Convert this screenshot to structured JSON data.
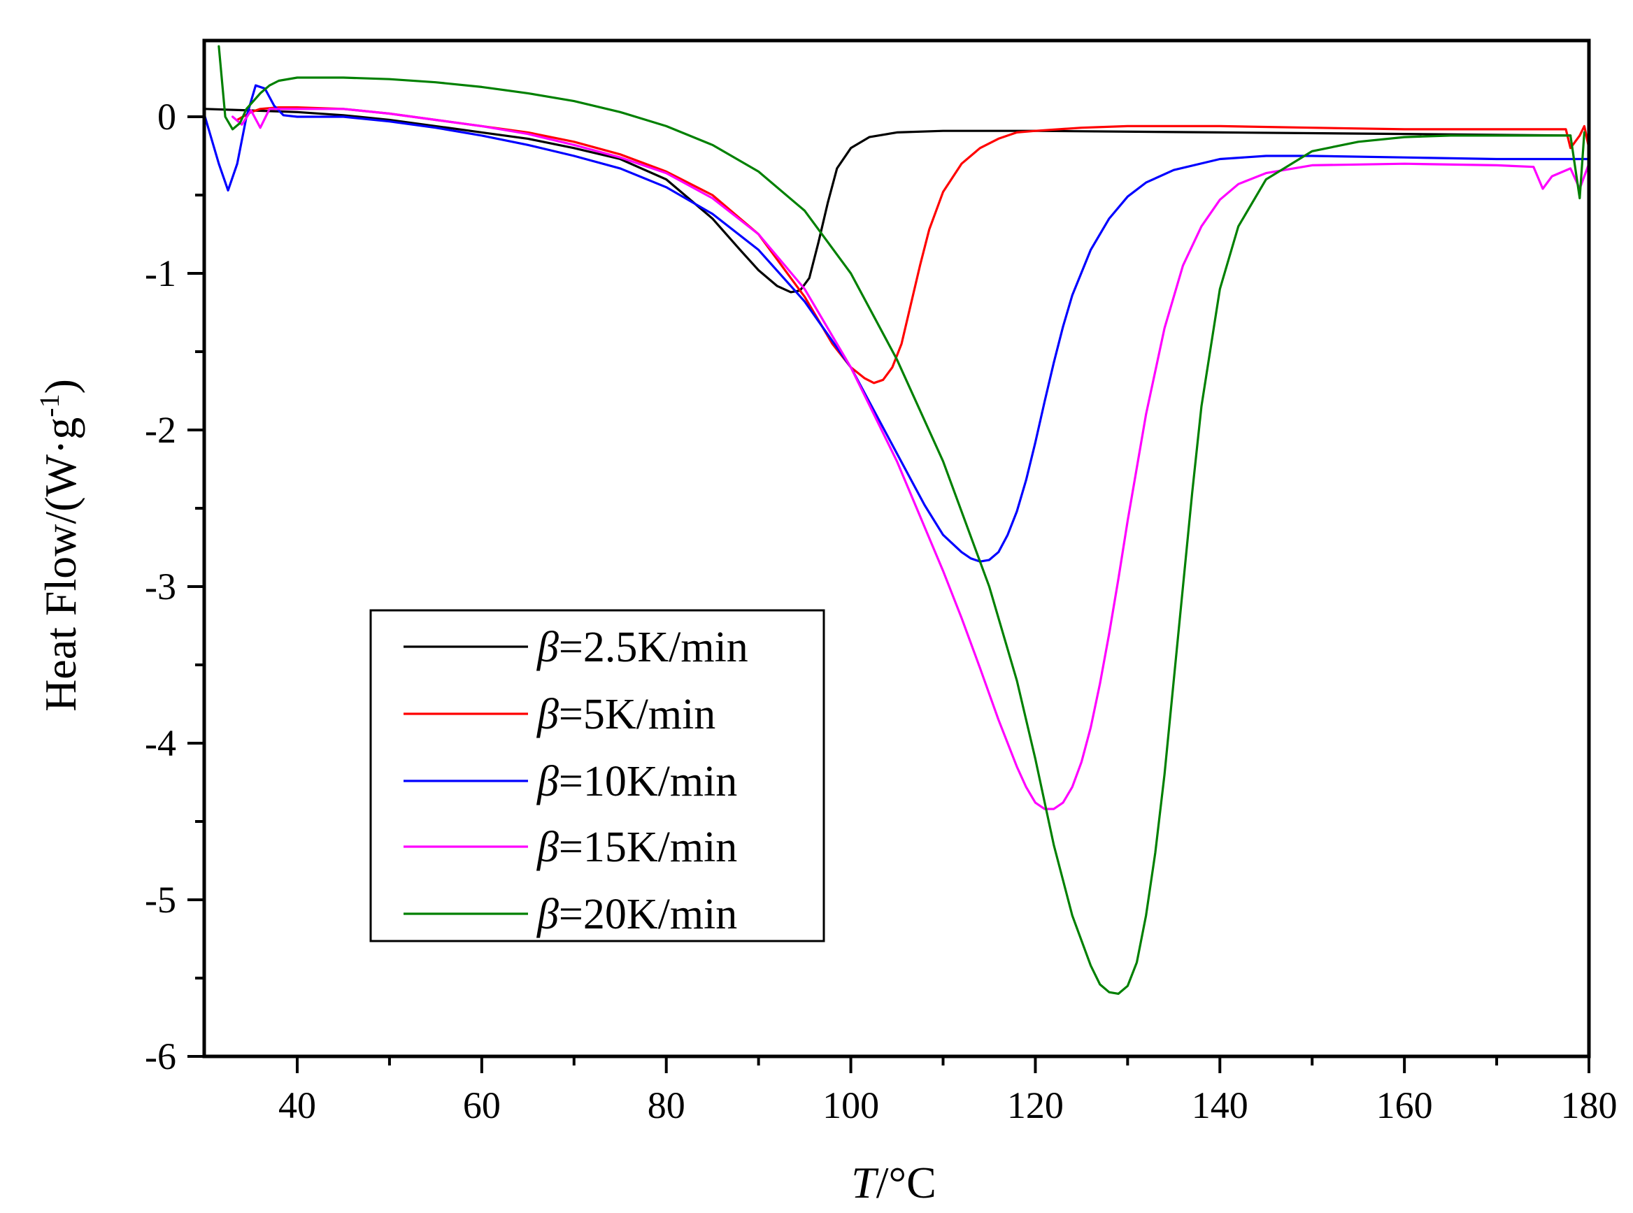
{
  "chart_data": {
    "type": "line",
    "title": "",
    "xlabel": {
      "italic": "T",
      "rest": "/°C"
    },
    "ylabel": {
      "main": "Heat Flow/(W·g",
      "sup": "-1",
      "close": ")"
    },
    "xlim": [
      30,
      180
    ],
    "ylim": [
      -6,
      0.5
    ],
    "xticks": [
      40,
      60,
      80,
      100,
      120,
      140,
      160,
      180
    ],
    "yticks": [
      0,
      -1,
      -2,
      -3,
      -4,
      -5,
      -6
    ],
    "xtick_labels": [
      "40",
      "60",
      "80",
      "100",
      "120",
      "140",
      "160",
      "180"
    ],
    "ytick_labels": [
      "0",
      "-1",
      "-2",
      "-3",
      "-4",
      "-5",
      "-6"
    ],
    "grid": false,
    "legend_position": "lower-left",
    "series": [
      {
        "name": "β=2.5K/min",
        "symbol": "β",
        "label": "=2.5K/min",
        "color": "#000000",
        "x": [
          30,
          35,
          40,
          45,
          50,
          55,
          60,
          65,
          70,
          75,
          80,
          85,
          88,
          90,
          92,
          93.5,
          94.5,
          95.5,
          96.5,
          97.5,
          98.5,
          100,
          102,
          105,
          110,
          115,
          120,
          140,
          160,
          178
        ],
        "y": [
          0.05,
          0.04,
          0.03,
          0.01,
          -0.02,
          -0.06,
          -0.1,
          -0.14,
          -0.2,
          -0.27,
          -0.4,
          -0.65,
          -0.85,
          -0.98,
          -1.08,
          -1.12,
          -1.11,
          -1.03,
          -0.8,
          -0.55,
          -0.33,
          -0.2,
          -0.13,
          -0.1,
          -0.09,
          -0.09,
          -0.09,
          -0.1,
          -0.11,
          -0.12
        ]
      },
      {
        "name": "β=5K/min",
        "symbol": "β",
        "label": "=5K/min",
        "color": "#ff0000",
        "x": [
          33.5,
          35,
          36,
          38,
          40,
          45,
          50,
          55,
          60,
          65,
          70,
          75,
          80,
          85,
          90,
          95,
          98,
          100,
          101.5,
          102.5,
          103.5,
          104.5,
          105.5,
          106.5,
          107.5,
          108.5,
          110,
          112,
          114,
          116,
          118,
          120,
          125,
          130,
          140,
          150,
          160,
          170,
          177.5,
          178,
          179,
          179.5,
          180
        ],
        "y": [
          -0.02,
          0.03,
          0.05,
          0.06,
          0.06,
          0.05,
          0.02,
          -0.02,
          -0.06,
          -0.1,
          -0.16,
          -0.24,
          -0.35,
          -0.5,
          -0.75,
          -1.15,
          -1.45,
          -1.6,
          -1.67,
          -1.7,
          -1.68,
          -1.6,
          -1.45,
          -1.2,
          -0.95,
          -0.72,
          -0.48,
          -0.3,
          -0.2,
          -0.14,
          -0.1,
          -0.09,
          -0.07,
          -0.06,
          -0.06,
          -0.07,
          -0.08,
          -0.08,
          -0.08,
          -0.2,
          -0.12,
          -0.06,
          -0.2
        ]
      },
      {
        "name": "β=10K/min",
        "symbol": "β",
        "label": "=10K/min",
        "color": "#0000ff",
        "x": [
          30,
          31.5,
          32.5,
          33.5,
          34.5,
          35.5,
          36.5,
          37.5,
          38.5,
          40,
          45,
          50,
          55,
          60,
          65,
          70,
          75,
          80,
          85,
          90,
          95,
          100,
          105,
          108,
          110,
          112,
          113,
          114,
          115,
          116,
          117,
          118,
          119,
          120,
          121,
          122,
          123,
          124,
          126,
          128,
          130,
          132,
          135,
          140,
          145,
          150,
          160,
          170,
          180
        ],
        "y": [
          0.0,
          -0.3,
          -0.47,
          -0.3,
          0.0,
          0.2,
          0.18,
          0.07,
          0.01,
          0.0,
          0.0,
          -0.03,
          -0.07,
          -0.12,
          -0.18,
          -0.25,
          -0.33,
          -0.45,
          -0.62,
          -0.85,
          -1.18,
          -1.6,
          -2.15,
          -2.48,
          -2.67,
          -2.78,
          -2.82,
          -2.84,
          -2.83,
          -2.78,
          -2.67,
          -2.52,
          -2.32,
          -2.08,
          -1.82,
          -1.57,
          -1.34,
          -1.14,
          -0.85,
          -0.65,
          -0.51,
          -0.42,
          -0.34,
          -0.27,
          -0.25,
          -0.25,
          -0.26,
          -0.27,
          -0.27
        ]
      },
      {
        "name": "β=15K/min",
        "symbol": "β",
        "label": "=15K/min",
        "color": "#ff00ff",
        "x": [
          33,
          34,
          35,
          36,
          37,
          38,
          40,
          45,
          50,
          55,
          60,
          65,
          70,
          75,
          80,
          85,
          90,
          95,
          100,
          105,
          108,
          110,
          112,
          114,
          116,
          118,
          119,
          120,
          121,
          122,
          123,
          124,
          125,
          126,
          127,
          128,
          129,
          130,
          132,
          134,
          136,
          138,
          140,
          142,
          145,
          150,
          160,
          170,
          174,
          175,
          176,
          178,
          179,
          180
        ],
        "y": [
          0.0,
          -0.05,
          0.04,
          -0.07,
          0.05,
          0.05,
          0.05,
          0.05,
          0.02,
          -0.02,
          -0.06,
          -0.11,
          -0.18,
          -0.26,
          -0.36,
          -0.52,
          -0.75,
          -1.1,
          -1.6,
          -2.2,
          -2.62,
          -2.9,
          -3.2,
          -3.52,
          -3.85,
          -4.15,
          -4.28,
          -4.38,
          -4.42,
          -4.42,
          -4.38,
          -4.28,
          -4.12,
          -3.9,
          -3.62,
          -3.3,
          -2.95,
          -2.58,
          -1.9,
          -1.35,
          -0.95,
          -0.7,
          -0.53,
          -0.43,
          -0.36,
          -0.31,
          -0.3,
          -0.31,
          -0.32,
          -0.46,
          -0.38,
          -0.33,
          -0.46,
          -0.3
        ]
      },
      {
        "name": "β=20K/min",
        "symbol": "β",
        "label": "=20K/min",
        "color": "#008000",
        "x": [
          31.5,
          32.2,
          33,
          33.8,
          34.5,
          36,
          37,
          38,
          40,
          45,
          50,
          55,
          60,
          65,
          70,
          75,
          80,
          85,
          90,
          95,
          100,
          105,
          110,
          115,
          118,
          120,
          122,
          124,
          126,
          127,
          128,
          129,
          130,
          131,
          132,
          133,
          134,
          135,
          136,
          137,
          138,
          140,
          142,
          145,
          150,
          155,
          160,
          165,
          170,
          175,
          178,
          179,
          179.5
        ],
        "y": [
          0.45,
          0.0,
          -0.08,
          -0.04,
          0.05,
          0.15,
          0.2,
          0.23,
          0.25,
          0.25,
          0.24,
          0.22,
          0.19,
          0.15,
          0.1,
          0.03,
          -0.06,
          -0.18,
          -0.35,
          -0.6,
          -1.0,
          -1.55,
          -2.2,
          -3.0,
          -3.6,
          -4.1,
          -4.65,
          -5.1,
          -5.42,
          -5.54,
          -5.59,
          -5.6,
          -5.55,
          -5.4,
          -5.1,
          -4.7,
          -4.2,
          -3.6,
          -3.0,
          -2.4,
          -1.85,
          -1.1,
          -0.7,
          -0.4,
          -0.22,
          -0.16,
          -0.13,
          -0.12,
          -0.12,
          -0.12,
          -0.12,
          -0.52,
          -0.1
        ]
      }
    ]
  }
}
